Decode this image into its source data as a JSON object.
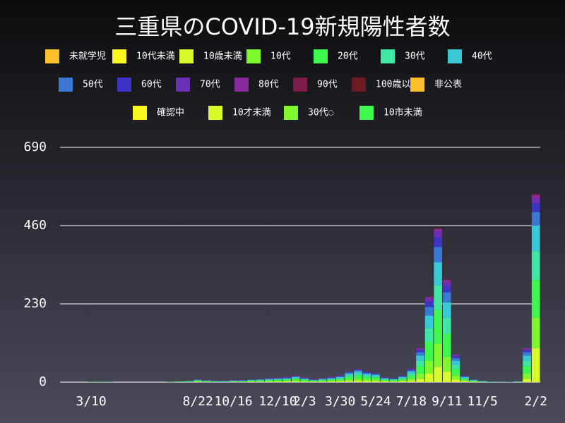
{
  "chart_data": {
    "type": "stacked-bar",
    "title": "三重県のCOVID-19新規陽性者数",
    "categories": [
      null,
      null,
      null,
      "3/10",
      null,
      null,
      null,
      null,
      null,
      null,
      null,
      null,
      null,
      null,
      null,
      "8/22",
      null,
      null,
      null,
      "10/16",
      null,
      null,
      null,
      null,
      "12/10",
      null,
      null,
      "2/3",
      null,
      null,
      null,
      "3/30",
      null,
      null,
      null,
      "5/24",
      null,
      null,
      null,
      "7/18",
      null,
      null,
      null,
      "9/11",
      null,
      null,
      null,
      "11/5",
      null,
      null,
      null,
      null,
      null,
      "2/2"
    ],
    "ylim": [
      0,
      690
    ],
    "yticks": [
      0,
      230,
      460,
      690
    ],
    "grid": true,
    "series": [
      {
        "name": "未就学児",
        "color": "#fbbf2a",
        "values": [
          0,
          0,
          0,
          0,
          0,
          0,
          0,
          0,
          0,
          0,
          0,
          0,
          0,
          0,
          0,
          0,
          0,
          0,
          0,
          0,
          0,
          0,
          0,
          0,
          0,
          0,
          0,
          0,
          0,
          0,
          0,
          0,
          0,
          0,
          0,
          0,
          0,
          0,
          0,
          0,
          0,
          0,
          0,
          0,
          0,
          0,
          0,
          0,
          0,
          0,
          0,
          0,
          0,
          0
        ]
      },
      {
        "name": "10代未満",
        "color": "#f9f61f",
        "values": [
          0,
          0,
          0,
          0,
          0,
          0,
          0,
          0,
          0,
          0,
          0,
          0,
          0,
          0,
          0,
          0,
          0,
          0,
          0,
          0,
          0,
          0,
          0,
          0,
          0,
          0,
          0,
          0,
          0,
          0,
          0,
          0,
          0,
          0,
          0,
          0,
          0,
          0,
          0,
          0,
          0,
          0,
          0,
          0,
          0,
          0,
          0,
          0,
          0,
          0,
          0,
          0,
          0,
          0
        ]
      },
      {
        "name": "10歳未満",
        "color": "#d8fa2a",
        "values": [
          0,
          0,
          0,
          0,
          0,
          0,
          0,
          0,
          0,
          0,
          0,
          0,
          0,
          0,
          0,
          1,
          0,
          0,
          0,
          0,
          0,
          1,
          1,
          1,
          1,
          2,
          2,
          1,
          1,
          1,
          2,
          2,
          3,
          4,
          3,
          3,
          2,
          1,
          2,
          4,
          10,
          25,
          45,
          30,
          8,
          2,
          1,
          0,
          0,
          0,
          0,
          0,
          10,
          100
        ]
      },
      {
        "name": "10代",
        "color": "#7ef82d",
        "values": [
          0,
          0,
          0,
          0,
          0,
          0,
          0,
          0,
          0,
          0,
          0,
          0,
          0,
          0,
          0,
          1,
          1,
          0,
          0,
          1,
          1,
          1,
          1,
          2,
          2,
          2,
          3,
          2,
          1,
          2,
          2,
          3,
          5,
          6,
          5,
          4,
          2,
          2,
          3,
          6,
          15,
          38,
          68,
          45,
          12,
          3,
          1,
          0,
          0,
          0,
          0,
          0,
          15,
          90
        ]
      },
      {
        "name": "20代",
        "color": "#3ef74c",
        "values": [
          0,
          0,
          0,
          1,
          1,
          0,
          0,
          0,
          0,
          0,
          0,
          0,
          1,
          1,
          1,
          2,
          1,
          1,
          1,
          1,
          1,
          2,
          2,
          2,
          3,
          3,
          4,
          3,
          2,
          2,
          3,
          4,
          7,
          9,
          7,
          6,
          3,
          2,
          4,
          9,
          22,
          55,
          99,
          66,
          18,
          4,
          2,
          1,
          0,
          0,
          0,
          1,
          22,
          110
        ]
      },
      {
        "name": "30代",
        "color": "#3ee8a2",
        "values": [
          0,
          0,
          0,
          0,
          0,
          1,
          0,
          0,
          0,
          0,
          0,
          0,
          0,
          1,
          1,
          1,
          1,
          1,
          1,
          1,
          1,
          1,
          2,
          2,
          2,
          2,
          3,
          2,
          1,
          2,
          2,
          3,
          5,
          6,
          5,
          4,
          2,
          2,
          3,
          6,
          16,
          40,
          72,
          48,
          13,
          3,
          1,
          1,
          1,
          0,
          0,
          0,
          16,
          85
        ]
      },
      {
        "name": "40代",
        "color": "#38c9d6",
        "values": [
          0,
          0,
          0,
          0,
          0,
          0,
          0,
          0,
          0,
          0,
          0,
          0,
          0,
          0,
          1,
          1,
          1,
          1,
          1,
          1,
          1,
          1,
          1,
          2,
          2,
          2,
          3,
          2,
          1,
          2,
          2,
          3,
          5,
          6,
          4,
          4,
          2,
          2,
          3,
          6,
          15,
          38,
          68,
          45,
          12,
          3,
          1,
          1,
          0,
          1,
          0,
          1,
          15,
          75
        ]
      },
      {
        "name": "50代",
        "color": "#3a78d6",
        "values": [
          0,
          0,
          0,
          0,
          0,
          0,
          0,
          0,
          0,
          0,
          0,
          0,
          0,
          0,
          0,
          1,
          1,
          0,
          0,
          1,
          1,
          1,
          1,
          1,
          1,
          2,
          2,
          1,
          1,
          1,
          2,
          2,
          3,
          4,
          3,
          3,
          2,
          1,
          2,
          4,
          10,
          25,
          45,
          30,
          8,
          2,
          1,
          0,
          0,
          0,
          1,
          0,
          10,
          40
        ]
      },
      {
        "name": "60代",
        "color": "#3a33c6",
        "values": [
          0,
          0,
          0,
          0,
          0,
          0,
          0,
          0,
          0,
          0,
          0,
          0,
          0,
          0,
          0,
          0,
          0,
          0,
          1,
          0,
          0,
          0,
          1,
          1,
          1,
          1,
          1,
          1,
          1,
          1,
          1,
          1,
          1,
          2,
          2,
          1,
          1,
          1,
          1,
          2,
          6,
          15,
          27,
          18,
          5,
          1,
          1,
          0,
          0,
          0,
          0,
          0,
          6,
          25
        ]
      },
      {
        "name": "70代",
        "color": "#6a2fb6",
        "values": [
          0,
          0,
          0,
          0,
          0,
          0,
          0,
          0,
          0,
          0,
          0,
          0,
          0,
          0,
          0,
          0,
          0,
          1,
          0,
          0,
          1,
          0,
          0,
          1,
          1,
          1,
          1,
          1,
          0,
          0,
          1,
          1,
          1,
          1,
          1,
          1,
          1,
          0,
          1,
          1,
          4,
          10,
          18,
          12,
          3,
          1,
          0,
          0,
          0,
          0,
          0,
          0,
          4,
          15
        ]
      },
      {
        "name": "80代",
        "color": "#8b2a9b",
        "values": [
          0,
          0,
          0,
          0,
          0,
          0,
          0,
          0,
          0,
          0,
          0,
          0,
          0,
          0,
          0,
          0,
          0,
          0,
          0,
          1,
          0,
          0,
          0,
          0,
          1,
          1,
          1,
          1,
          1,
          1,
          1,
          1,
          0,
          1,
          0,
          0,
          1,
          0,
          0,
          1,
          2,
          4,
          8,
          6,
          2,
          0,
          0,
          0,
          0,
          0,
          0,
          0,
          2,
          10
        ]
      },
      {
        "name": "90代",
        "color": "#7b1c4a",
        "values": [
          0,
          0,
          0,
          0,
          0,
          0,
          0,
          0,
          0,
          0,
          0,
          0,
          0,
          0,
          0,
          0,
          0,
          0,
          0,
          0,
          0,
          0,
          0,
          0,
          0,
          0,
          1,
          0,
          0,
          0,
          0,
          0,
          0,
          0,
          0,
          0,
          0,
          0,
          0,
          0,
          0,
          1,
          2,
          1,
          0,
          0,
          0,
          0,
          0,
          0,
          0,
          0,
          0,
          3
        ]
      },
      {
        "name": "100歳以上",
        "color": "#6a1a20",
        "values": [
          0,
          0,
          0,
          0,
          0,
          0,
          0,
          0,
          0,
          0,
          0,
          0,
          0,
          0,
          0,
          0,
          0,
          0,
          0,
          0,
          0,
          0,
          0,
          0,
          0,
          0,
          0,
          0,
          0,
          0,
          0,
          0,
          0,
          0,
          0,
          0,
          0,
          0,
          0,
          0,
          0,
          0,
          0,
          0,
          0,
          0,
          0,
          0,
          0,
          0,
          0,
          0,
          0,
          0
        ]
      },
      {
        "name": "非公表",
        "color": "#fbbf2a",
        "values": [
          0,
          0,
          0,
          0,
          0,
          0,
          0,
          0,
          0,
          0,
          0,
          0,
          0,
          0,
          0,
          0,
          0,
          0,
          0,
          0,
          0,
          0,
          0,
          0,
          0,
          0,
          0,
          0,
          0,
          0,
          0,
          0,
          0,
          0,
          0,
          0,
          0,
          0,
          0,
          0,
          0,
          0,
          0,
          0,
          0,
          0,
          0,
          0,
          0,
          0,
          0,
          0,
          0,
          0
        ]
      },
      {
        "name": "確認中",
        "color": "#f9f61f",
        "values": [
          0,
          0,
          0,
          0,
          0,
          0,
          0,
          0,
          0,
          0,
          0,
          0,
          0,
          0,
          0,
          0,
          0,
          0,
          0,
          0,
          0,
          0,
          0,
          0,
          0,
          0,
          0,
          0,
          0,
          0,
          0,
          0,
          0,
          0,
          0,
          0,
          0,
          0,
          0,
          0,
          0,
          0,
          0,
          0,
          0,
          0,
          0,
          0,
          0,
          0,
          0,
          0,
          0,
          0
        ]
      },
      {
        "name": "10才未満",
        "color": "#d8fa2a",
        "values": [
          0,
          0,
          0,
          0,
          0,
          0,
          0,
          0,
          0,
          0,
          0,
          0,
          0,
          0,
          0,
          0,
          0,
          0,
          0,
          0,
          0,
          0,
          0,
          0,
          0,
          0,
          0,
          0,
          0,
          0,
          0,
          0,
          0,
          0,
          0,
          0,
          0,
          0,
          0,
          0,
          0,
          0,
          0,
          0,
          0,
          0,
          0,
          0,
          0,
          0,
          0,
          0,
          0,
          0
        ]
      },
      {
        "name": "30代◌",
        "color": "#7ef82d",
        "values": [
          0,
          0,
          0,
          0,
          0,
          0,
          0,
          0,
          0,
          0,
          0,
          0,
          0,
          0,
          0,
          0,
          0,
          0,
          0,
          0,
          0,
          0,
          0,
          0,
          0,
          0,
          0,
          0,
          0,
          0,
          0,
          0,
          0,
          0,
          0,
          0,
          0,
          0,
          0,
          0,
          0,
          0,
          0,
          0,
          0,
          0,
          0,
          0,
          0,
          0,
          0,
          0,
          0,
          0
        ]
      },
      {
        "name": "10市未満",
        "color": "#3ef74c",
        "values": [
          0,
          0,
          0,
          0,
          0,
          0,
          0,
          0,
          0,
          0,
          0,
          0,
          0,
          0,
          0,
          0,
          0,
          0,
          0,
          0,
          0,
          0,
          0,
          0,
          0,
          0,
          0,
          0,
          0,
          0,
          0,
          0,
          0,
          0,
          0,
          0,
          0,
          0,
          0,
          0,
          0,
          0,
          0,
          0,
          0,
          0,
          0,
          0,
          0,
          0,
          0,
          0,
          0,
          0
        ]
      }
    ]
  }
}
